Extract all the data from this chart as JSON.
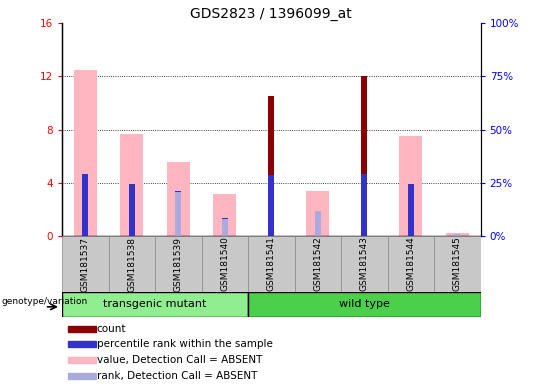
{
  "title": "GDS2823 / 1396099_at",
  "samples": [
    "GSM181537",
    "GSM181538",
    "GSM181539",
    "GSM181540",
    "GSM181541",
    "GSM181542",
    "GSM181543",
    "GSM181544",
    "GSM181545"
  ],
  "ylim_left": [
    0,
    16
  ],
  "ylim_right": [
    0,
    100
  ],
  "yticks_left": [
    0,
    4,
    8,
    12,
    16
  ],
  "yticks_right": [
    0,
    25,
    50,
    75,
    100
  ],
  "pink_bar_values": [
    12.5,
    7.7,
    5.6,
    3.2,
    0,
    3.4,
    0,
    7.5,
    0.2
  ],
  "red_bar_values": [
    0,
    0,
    0,
    0,
    10.5,
    0,
    12.0,
    0,
    0
  ],
  "blue_bar_values": [
    4.7,
    3.9,
    3.4,
    1.4,
    4.6,
    0,
    4.7,
    3.9,
    0
  ],
  "light_blue_bar_values": [
    0,
    0,
    3.3,
    1.3,
    0,
    1.9,
    0,
    0,
    0.15
  ],
  "color_pink": "#FFB6C1",
  "color_red": "#8B0000",
  "color_blue": "#3333CC",
  "color_light_blue": "#AAAADD",
  "color_group1": "#90EE90",
  "color_group2": "#4CD04C",
  "bar_width": 0.5,
  "narrow_bar_width": 0.13,
  "group_label": "genotype/variation",
  "group1_label": "transgenic mutant",
  "group2_label": "wild type",
  "group1_samples": [
    0,
    3
  ],
  "group2_samples": [
    4,
    8
  ],
  "legend_items": [
    {
      "color": "#8B0000",
      "label": "count"
    },
    {
      "color": "#3333CC",
      "label": "percentile rank within the sample"
    },
    {
      "color": "#FFB6C1",
      "label": "value, Detection Call = ABSENT"
    },
    {
      "color": "#AAAADD",
      "label": "rank, Detection Call = ABSENT"
    }
  ]
}
